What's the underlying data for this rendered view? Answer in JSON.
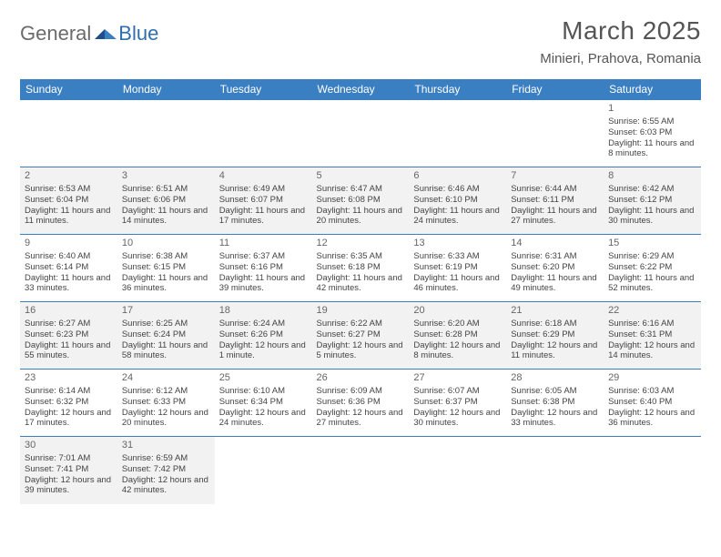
{
  "brand": {
    "first": "General",
    "second": "Blue"
  },
  "title": "March 2025",
  "location": "Minieri, Prahova, Romania",
  "colors": {
    "header_bg": "#3a7fc1",
    "header_text": "#ffffff",
    "title_text": "#555555",
    "body_text": "#444444",
    "alt_row_bg": "#f2f2f2",
    "rule": "#3a7fc1",
    "logo_gray": "#6b6b6b",
    "logo_blue": "#2f6fb0"
  },
  "weekdays": [
    "Sunday",
    "Monday",
    "Tuesday",
    "Wednesday",
    "Thursday",
    "Friday",
    "Saturday"
  ],
  "days": {
    "1": {
      "sr": "6:55 AM",
      "ss": "6:03 PM",
      "dl": "11 hours and 8 minutes."
    },
    "2": {
      "sr": "6:53 AM",
      "ss": "6:04 PM",
      "dl": "11 hours and 11 minutes."
    },
    "3": {
      "sr": "6:51 AM",
      "ss": "6:06 PM",
      "dl": "11 hours and 14 minutes."
    },
    "4": {
      "sr": "6:49 AM",
      "ss": "6:07 PM",
      "dl": "11 hours and 17 minutes."
    },
    "5": {
      "sr": "6:47 AM",
      "ss": "6:08 PM",
      "dl": "11 hours and 20 minutes."
    },
    "6": {
      "sr": "6:46 AM",
      "ss": "6:10 PM",
      "dl": "11 hours and 24 minutes."
    },
    "7": {
      "sr": "6:44 AM",
      "ss": "6:11 PM",
      "dl": "11 hours and 27 minutes."
    },
    "8": {
      "sr": "6:42 AM",
      "ss": "6:12 PM",
      "dl": "11 hours and 30 minutes."
    },
    "9": {
      "sr": "6:40 AM",
      "ss": "6:14 PM",
      "dl": "11 hours and 33 minutes."
    },
    "10": {
      "sr": "6:38 AM",
      "ss": "6:15 PM",
      "dl": "11 hours and 36 minutes."
    },
    "11": {
      "sr": "6:37 AM",
      "ss": "6:16 PM",
      "dl": "11 hours and 39 minutes."
    },
    "12": {
      "sr": "6:35 AM",
      "ss": "6:18 PM",
      "dl": "11 hours and 42 minutes."
    },
    "13": {
      "sr": "6:33 AM",
      "ss": "6:19 PM",
      "dl": "11 hours and 46 minutes."
    },
    "14": {
      "sr": "6:31 AM",
      "ss": "6:20 PM",
      "dl": "11 hours and 49 minutes."
    },
    "15": {
      "sr": "6:29 AM",
      "ss": "6:22 PM",
      "dl": "11 hours and 52 minutes."
    },
    "16": {
      "sr": "6:27 AM",
      "ss": "6:23 PM",
      "dl": "11 hours and 55 minutes."
    },
    "17": {
      "sr": "6:25 AM",
      "ss": "6:24 PM",
      "dl": "11 hours and 58 minutes."
    },
    "18": {
      "sr": "6:24 AM",
      "ss": "6:26 PM",
      "dl": "12 hours and 1 minute."
    },
    "19": {
      "sr": "6:22 AM",
      "ss": "6:27 PM",
      "dl": "12 hours and 5 minutes."
    },
    "20": {
      "sr": "6:20 AM",
      "ss": "6:28 PM",
      "dl": "12 hours and 8 minutes."
    },
    "21": {
      "sr": "6:18 AM",
      "ss": "6:29 PM",
      "dl": "12 hours and 11 minutes."
    },
    "22": {
      "sr": "6:16 AM",
      "ss": "6:31 PM",
      "dl": "12 hours and 14 minutes."
    },
    "23": {
      "sr": "6:14 AM",
      "ss": "6:32 PM",
      "dl": "12 hours and 17 minutes."
    },
    "24": {
      "sr": "6:12 AM",
      "ss": "6:33 PM",
      "dl": "12 hours and 20 minutes."
    },
    "25": {
      "sr": "6:10 AM",
      "ss": "6:34 PM",
      "dl": "12 hours and 24 minutes."
    },
    "26": {
      "sr": "6:09 AM",
      "ss": "6:36 PM",
      "dl": "12 hours and 27 minutes."
    },
    "27": {
      "sr": "6:07 AM",
      "ss": "6:37 PM",
      "dl": "12 hours and 30 minutes."
    },
    "28": {
      "sr": "6:05 AM",
      "ss": "6:38 PM",
      "dl": "12 hours and 33 minutes."
    },
    "29": {
      "sr": "6:03 AM",
      "ss": "6:40 PM",
      "dl": "12 hours and 36 minutes."
    },
    "30": {
      "sr": "7:01 AM",
      "ss": "7:41 PM",
      "dl": "12 hours and 39 minutes."
    },
    "31": {
      "sr": "6:59 AM",
      "ss": "7:42 PM",
      "dl": "12 hours and 42 minutes."
    }
  },
  "labels": {
    "sunrise": "Sunrise: ",
    "sunset": "Sunset: ",
    "daylight": "Daylight: "
  },
  "grid": [
    [
      null,
      null,
      null,
      null,
      null,
      null,
      "1"
    ],
    [
      "2",
      "3",
      "4",
      "5",
      "6",
      "7",
      "8"
    ],
    [
      "9",
      "10",
      "11",
      "12",
      "13",
      "14",
      "15"
    ],
    [
      "16",
      "17",
      "18",
      "19",
      "20",
      "21",
      "22"
    ],
    [
      "23",
      "24",
      "25",
      "26",
      "27",
      "28",
      "29"
    ],
    [
      "30",
      "31",
      null,
      null,
      null,
      null,
      null
    ]
  ]
}
